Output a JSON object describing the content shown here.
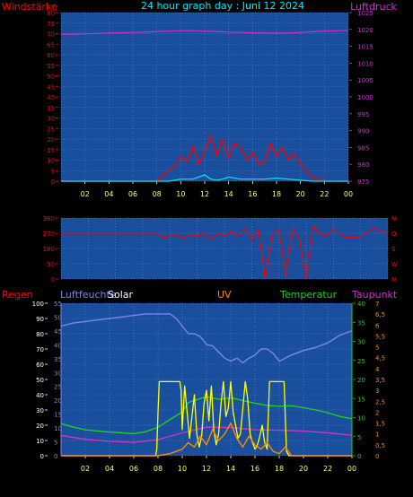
{
  "header": {
    "left_label": "Windstärke",
    "title": "24 hour graph day : Juni 12 2024",
    "right_label": "Luftdruck"
  },
  "colors": {
    "background": "#000000",
    "plot_bg": "#1a4f9e",
    "grid": "#5a86c8",
    "wind": "#ff0000",
    "gust": "#00e5ff",
    "pressure": "#cc33cc",
    "direction": "#ff0000",
    "humidity": "#7b86e8",
    "temperature": "#22cc22",
    "dewpoint": "#cc33cc",
    "solar": "#ffff00",
    "uv": "#ff8800",
    "rain": "#ff0000",
    "time_label": "#ffff66"
  },
  "time_ticks": [
    "02",
    "04",
    "06",
    "08",
    "10",
    "12",
    "14",
    "16",
    "18",
    "20",
    "22",
    "00"
  ],
  "chart_data": [
    {
      "type": "line",
      "panel": "wind_pressure",
      "x_unit": "hour",
      "xlim": [
        0,
        24
      ],
      "left_axis": {
        "label": "Windstärke",
        "ticks": [
          "0",
          "5",
          "10",
          "15",
          "20",
          "25",
          "30",
          "35",
          "40",
          "45",
          "50",
          "55",
          "60",
          "65",
          "70",
          "75",
          "80"
        ],
        "ylim": [
          0,
          80
        ]
      },
      "right_axis": {
        "label": "Luftdruck",
        "ticks": [
          "975",
          "980",
          "985",
          "990",
          "995",
          "1000",
          "1005",
          "1010",
          "1015",
          "1020",
          "1025"
        ],
        "ylim": [
          975,
          1025
        ]
      },
      "series": [
        {
          "name": "Luftdruck",
          "axis": "right",
          "x": [
            0,
            1,
            2,
            3,
            4,
            5,
            6,
            7,
            8,
            9,
            10,
            11,
            12,
            13,
            14,
            15,
            16,
            17,
            18,
            19,
            20,
            21,
            22,
            23,
            24
          ],
          "values": [
            1018.6,
            1018.6,
            1018.7,
            1018.8,
            1018.9,
            1019.0,
            1019.1,
            1019.2,
            1019.4,
            1019.5,
            1019.6,
            1019.6,
            1019.5,
            1019.4,
            1019.2,
            1019.1,
            1019.0,
            1018.9,
            1018.9,
            1018.9,
            1019.1,
            1019.3,
            1019.5,
            1019.6,
            1019.7
          ]
        },
        {
          "name": "wind",
          "axis": "left",
          "x": [
            0,
            7,
            8,
            8.5,
            9,
            9.5,
            10,
            10.5,
            11,
            11.5,
            12,
            12.5,
            13,
            13.5,
            14,
            14.5,
            15,
            15.5,
            16,
            16.5,
            17,
            17.5,
            18,
            18.5,
            19,
            19.5,
            20,
            20.5,
            21,
            22,
            24
          ],
          "values": [
            0,
            0,
            0,
            3,
            5,
            7,
            12,
            9,
            17,
            8,
            14,
            22,
            12,
            20,
            11,
            18,
            16,
            10,
            14,
            8,
            9,
            18,
            12,
            16,
            10,
            13,
            8,
            5,
            2,
            0,
            0
          ]
        },
        {
          "name": "gust",
          "axis": "left",
          "x": [
            0,
            9,
            10,
            11,
            11.5,
            12,
            12.5,
            13,
            13.5,
            14,
            15,
            16,
            17,
            18,
            19,
            20,
            21,
            24
          ],
          "values": [
            0,
            0,
            1,
            1,
            2,
            3,
            1,
            0.5,
            1,
            2,
            1,
            1,
            1,
            1.5,
            1,
            0.5,
            0,
            0
          ]
        }
      ]
    },
    {
      "type": "line",
      "panel": "wind_direction",
      "x_unit": "hour",
      "xlim": [
        0,
        24
      ],
      "left_axis": {
        "ticks": [
          "0",
          "90",
          "180",
          "270",
          "360"
        ],
        "ylim": [
          0,
          360
        ]
      },
      "right_axis": {
        "ticks": [
          "N",
          "W",
          "S",
          "O",
          "N"
        ]
      },
      "series": [
        {
          "name": "direction",
          "x": [
            0,
            7,
            7.5,
            8,
            8.5,
            9,
            9.5,
            10,
            10.5,
            11,
            11.5,
            12,
            12.5,
            13,
            13.5,
            14,
            14.5,
            15,
            15.5,
            16,
            16.5,
            17,
            17.5,
            18,
            18.5,
            19,
            19.5,
            20,
            20.5,
            21,
            22,
            23,
            24
          ],
          "values": [
            270,
            270,
            245,
            250,
            265,
            240,
            262,
            255,
            270,
            235,
            268,
            255,
            280,
            250,
            300,
            230,
            290,
            0,
            260,
            290,
            20,
            300,
            240,
            0,
            310,
            270,
            250,
            300,
            260,
            245,
            250,
            300,
            270
          ]
        }
      ]
    },
    {
      "type": "line",
      "panel": "climate",
      "x_unit": "hour",
      "xlim": [
        0,
        24
      ],
      "labels": {
        "rain": "Regen",
        "humidity": "Luftfeuchte",
        "solar": "Solar",
        "uv": "UV",
        "temperature": "Temperatur",
        "dewpoint": "Taupunkt"
      },
      "axes": {
        "rain": {
          "ticks": [
            "0",
            "10",
            "20",
            "30",
            "40",
            "50",
            "60",
            "70",
            "80",
            "90",
            "100"
          ],
          "ylim": [
            0,
            100
          ]
        },
        "humidity": {
          "ticks": [
            "0",
            "5",
            "10",
            "15",
            "20",
            "25",
            "30",
            "35",
            "40",
            "45",
            "50",
            "55"
          ],
          "ylim": [
            0,
            55
          ]
        },
        "temperature": {
          "ticks": [
            "0",
            "5",
            "10",
            "15",
            "20",
            "25",
            "30",
            "35",
            "40"
          ],
          "ylim": [
            0,
            40
          ]
        },
        "dewpoint": {
          "ticks": [
            "0",
            "0,5",
            "1",
            "1,5",
            "2",
            "2,5",
            "3",
            "3,5",
            "4",
            "4,5",
            "5",
            "5,5",
            "6",
            "6,5",
            "7"
          ],
          "ylim": [
            0,
            7
          ]
        }
      },
      "series": [
        {
          "name": "Luftfeuchte",
          "axis": "rain",
          "x": [
            0,
            1,
            2,
            3,
            4,
            5,
            6,
            7,
            8,
            9,
            9.5,
            10,
            10.5,
            11,
            11.5,
            12,
            12.5,
            13,
            13.5,
            14,
            14.5,
            15,
            15.5,
            16,
            16.5,
            17,
            17.5,
            18,
            18.5,
            19,
            20,
            21,
            22,
            23,
            24
          ],
          "values": [
            85,
            87,
            88,
            89,
            90,
            91,
            92,
            93,
            93,
            93,
            90,
            85,
            80,
            80,
            78,
            73,
            72,
            68,
            64,
            62,
            64,
            61,
            64,
            66,
            70,
            70,
            67,
            62,
            64,
            66,
            69,
            71,
            74,
            79,
            82
          ]
        },
        {
          "name": "Temperatur",
          "axis": "temperature",
          "x": [
            0,
            1,
            2,
            3,
            4,
            5,
            6,
            7,
            8,
            9,
            10,
            10.5,
            11,
            12,
            13,
            14,
            15,
            16,
            17,
            18,
            19,
            20,
            21,
            22,
            23,
            24
          ],
          "values": [
            8.4,
            7.5,
            6.8,
            6.5,
            6.2,
            6.0,
            5.8,
            6.3,
            7.5,
            9.5,
            11.5,
            14,
            14.5,
            15.5,
            14.8,
            15.2,
            14.5,
            13.8,
            13.2,
            13.0,
            13.1,
            12.6,
            12.0,
            11.3,
            10.3,
            9.7
          ]
        },
        {
          "name": "Taupunkt",
          "axis": "temperature",
          "x": [
            0,
            2,
            4,
            6,
            8,
            10,
            12,
            14,
            16,
            18,
            20,
            22,
            24
          ],
          "values": [
            5.3,
            4.3,
            3.8,
            3.5,
            4.2,
            6.0,
            7.5,
            7.4,
            6.8,
            6.7,
            6.5,
            6.0,
            5.4
          ]
        },
        {
          "name": "Solar",
          "axis": "dewpoint",
          "x": [
            0,
            7.8,
            7.9,
            8.0,
            8.1,
            8.2,
            9.8,
            9.9,
            10.0,
            10.2,
            10.4,
            10.6,
            10.8,
            11.0,
            11.2,
            11.4,
            11.6,
            11.8,
            12.0,
            12.2,
            12.4,
            12.6,
            12.8,
            13.0,
            13.2,
            13.4,
            13.6,
            13.8,
            14.0,
            14.2,
            14.4,
            14.6,
            14.8,
            15.0,
            15.2,
            15.4,
            15.6,
            15.8,
            16.0,
            16.2,
            16.4,
            16.6,
            16.8,
            17.0,
            17.2,
            17.4,
            17.6,
            17.8,
            18.0,
            18.2,
            18.4,
            18.6,
            18.8,
            19.0,
            19.2,
            19.4,
            19.6,
            19.8,
            24
          ],
          "values": [
            0,
            0,
            0.3,
            2.0,
            3.4,
            3.4,
            3.4,
            3.0,
            1.2,
            3.2,
            2.0,
            0.8,
            1.8,
            2.8,
            1.0,
            0.4,
            0.9,
            2.4,
            3.0,
            1.6,
            3.2,
            1.2,
            0.5,
            1.0,
            2.4,
            3.4,
            1.8,
            2.2,
            3.4,
            2.0,
            1.4,
            0.8,
            1.0,
            2.2,
            3.4,
            2.6,
            1.0,
            0.6,
            0.3,
            0.5,
            0.9,
            1.4,
            0.6,
            0.3,
            3.4,
            3.4,
            3.4,
            3.4,
            3.4,
            3.4,
            3.4,
            0.2,
            0,
            0,
            0,
            0,
            0,
            0,
            0
          ]
        },
        {
          "name": "UV",
          "axis": "dewpoint",
          "x": [
            0,
            8,
            9,
            10,
            10.5,
            11,
            11.5,
            12,
            12.5,
            13,
            13.5,
            14,
            14.5,
            15,
            15.5,
            16,
            16.5,
            17,
            17.5,
            18,
            18.5,
            19,
            20,
            24
          ],
          "values": [
            0,
            0,
            0.1,
            0.3,
            0.6,
            0.4,
            0.9,
            0.5,
            1.2,
            0.7,
            1.0,
            1.5,
            0.8,
            0.4,
            0.9,
            0.5,
            0.3,
            0.6,
            0.2,
            0.1,
            0.4,
            0,
            0,
            0
          ]
        }
      ]
    }
  ]
}
